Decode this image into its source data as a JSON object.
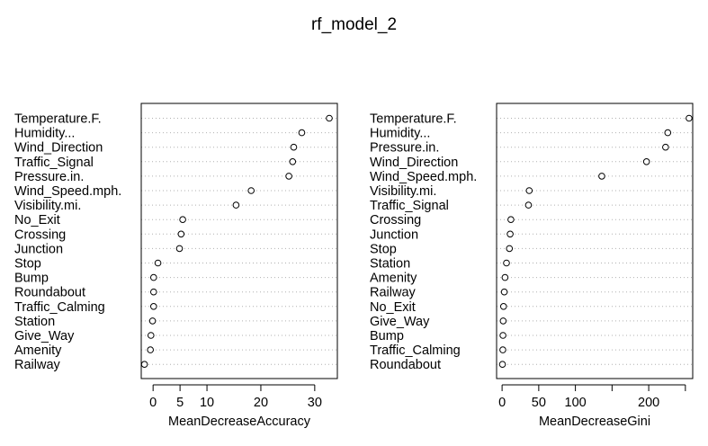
{
  "title": "rf_model_2",
  "chart_data": [
    {
      "type": "scatter",
      "xlabel": "MeanDecreaseAccuracy",
      "ylabel": "",
      "xlim": [
        -2.2,
        34.2
      ],
      "xticks": [
        0,
        5,
        10,
        20,
        30
      ],
      "grid": "dotted horizontal lines per variable",
      "categories": [
        "Temperature.F.",
        "Humidity...",
        "Wind_Direction",
        "Traffic_Signal",
        "Pressure.in.",
        "Wind_Speed.mph.",
        "Visibility.mi.",
        "No_Exit",
        "Crossing",
        "Junction",
        "Stop",
        "Bump",
        "Roundabout",
        "Traffic_Calming",
        "Station",
        "Give_Way",
        "Amenity",
        "Railway"
      ],
      "values": [
        32.7,
        27.6,
        26.1,
        25.9,
        25.2,
        18.2,
        15.4,
        5.5,
        5.2,
        4.9,
        0.9,
        0.1,
        0.1,
        0.1,
        -0.1,
        -0.4,
        -0.5,
        -1.6
      ]
    },
    {
      "type": "scatter",
      "xlabel": "MeanDecreaseGini",
      "ylabel": "",
      "xlim": [
        -7.5,
        260
      ],
      "xticks": [
        0,
        50,
        100,
        150,
        200,
        250
      ],
      "xtick_labels": [
        "0",
        "50",
        "100",
        "",
        "200",
        ""
      ],
      "grid": "dotted horizontal lines per variable",
      "categories": [
        "Temperature.F.",
        "Humidity...",
        "Pressure.in.",
        "Wind_Direction",
        "Wind_Speed.mph.",
        "Visibility.mi.",
        "Traffic_Signal",
        "Crossing",
        "Junction",
        "Stop",
        "Station",
        "Amenity",
        "Railway",
        "No_Exit",
        "Give_Way",
        "Bump",
        "Traffic_Calming",
        "Roundabout"
      ],
      "values": [
        255,
        226,
        223,
        197,
        136,
        37,
        36,
        12,
        11,
        10,
        6,
        4,
        3,
        2,
        1.5,
        1.2,
        1,
        0.5
      ]
    }
  ]
}
